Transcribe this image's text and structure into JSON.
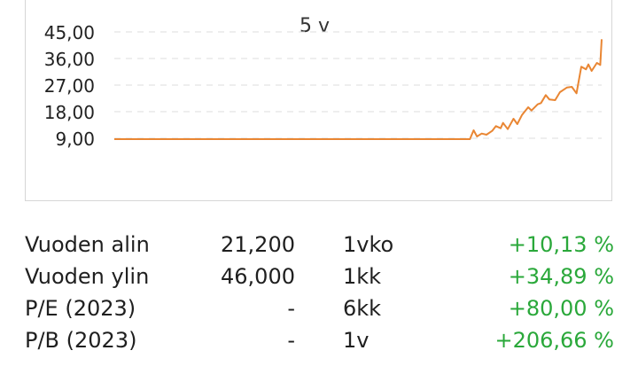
{
  "chart_data": {
    "type": "line",
    "title": "5 v",
    "yticks": [
      "9,00",
      "18,00",
      "27,00",
      "36,00",
      "45,00"
    ],
    "ylim": [
      0,
      46
    ],
    "grid": true,
    "line_color": "#e98633",
    "series": [
      {
        "values": [
          [
            0,
            8.7
          ],
          [
            0.75,
            8.7
          ],
          [
            0.758,
            11.7
          ],
          [
            0.765,
            9.6
          ],
          [
            0.775,
            10.6
          ],
          [
            0.785,
            10.2
          ],
          [
            0.797,
            11.5
          ],
          [
            0.805,
            13.1
          ],
          [
            0.815,
            12.4
          ],
          [
            0.82,
            14.2
          ],
          [
            0.83,
            12.1
          ],
          [
            0.842,
            15.6
          ],
          [
            0.85,
            13.8
          ],
          [
            0.86,
            16.9
          ],
          [
            0.873,
            19.5
          ],
          [
            0.88,
            18.4
          ],
          [
            0.893,
            20.5
          ],
          [
            0.9,
            20.9
          ],
          [
            0.91,
            23.6
          ],
          [
            0.918,
            22.1
          ],
          [
            0.93,
            21.9
          ],
          [
            0.94,
            24.6
          ],
          [
            0.955,
            26.2
          ],
          [
            0.965,
            26.4
          ],
          [
            0.975,
            24.2
          ],
          [
            0.985,
            33.2
          ],
          [
            0.995,
            32.3
          ],
          [
            1.0,
            34.0
          ],
          [
            1.007,
            31.8
          ],
          [
            1.018,
            34.5
          ],
          [
            1.025,
            33.8
          ],
          [
            1.028,
            42.5
          ]
        ]
      }
    ]
  },
  "stats": [
    {
      "label": "Vuoden alin",
      "value": "21,200",
      "period": "1vko",
      "change": "+10,13 %"
    },
    {
      "label": "Vuoden ylin",
      "value": "46,000",
      "period": "1kk",
      "change": "+34,89 %"
    },
    {
      "label": "P/E (2023)",
      "value": "-",
      "period": "6kk",
      "change": "+80,00 %"
    },
    {
      "label": "P/B (2023)",
      "value": "-",
      "period": "1v",
      "change": "+206,66 %"
    }
  ]
}
